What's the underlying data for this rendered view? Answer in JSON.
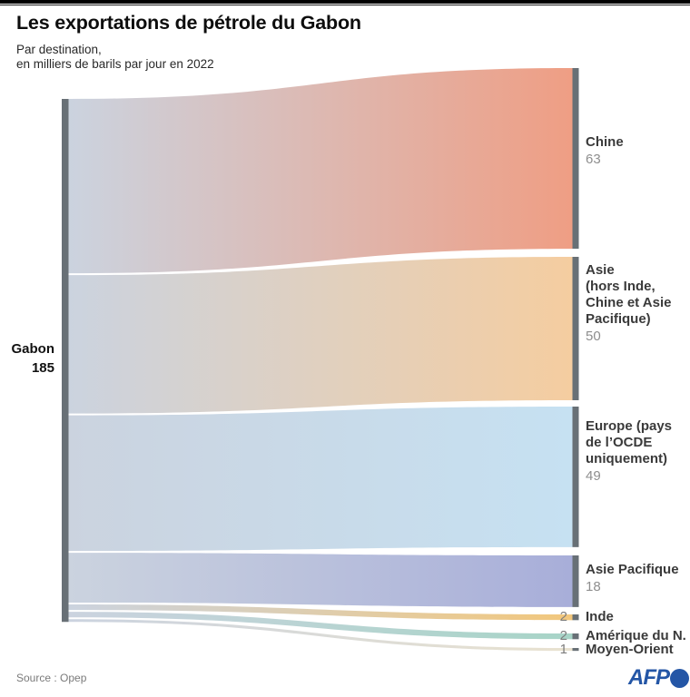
{
  "header": {
    "title": "Les exportations de pétrole du Gabon",
    "subtitle": "Par destination,\nen milliers de barils par jour en 2022"
  },
  "chart_data": {
    "type": "sankey",
    "title": "Les exportations de pétrole du Gabon",
    "subtitle": "Par destination, en milliers de barils par jour en 2022",
    "unit": "milliers de barils par jour",
    "year": "2022",
    "source_node": {
      "label": "Gabon",
      "value": 185
    },
    "links": [
      {
        "target": "Chine",
        "value": 63,
        "color": "#ef9e84"
      },
      {
        "target": "Asie\n(hors Inde,\nChine et Asie\nPacifique)",
        "value": 50,
        "color": "#f5cda0"
      },
      {
        "target": "Europe (pays\nde l’OCDE\nuniquement)",
        "value": 49,
        "color": "#c6e1f2"
      },
      {
        "target": "Asie Pacifique",
        "value": 18,
        "color": "#a8aed9"
      },
      {
        "target": "Inde",
        "value": 2,
        "color": "#f2c77c"
      },
      {
        "target": "Amérique du N.",
        "value": 2,
        "color": "#a7d4c7"
      },
      {
        "target": "Moyen-Orient",
        "value": 1,
        "color": "#e9e2d0"
      }
    ],
    "flow_start_color": "#cbd3df",
    "node_bar_color": "#687076"
  },
  "footer": {
    "source": "Source : Opep",
    "logo": "AFP"
  }
}
